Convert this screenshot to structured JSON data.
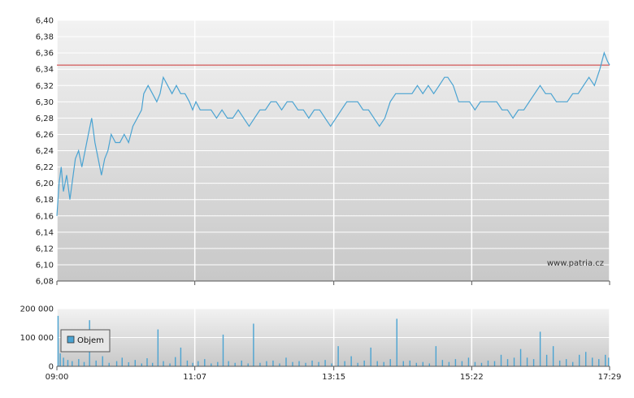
{
  "chart_data": [
    {
      "type": "line",
      "title": "",
      "xlabel": "",
      "ylabel": "",
      "ylim": [
        6.08,
        6.4
      ],
      "grid": true,
      "y_ticks": [
        "6,08",
        "6,10",
        "6,12",
        "6,14",
        "6,16",
        "6,18",
        "6,20",
        "6,22",
        "6,24",
        "6,26",
        "6,28",
        "6,30",
        "6,32",
        "6,34",
        "6,36",
        "6,38",
        "6,40"
      ],
      "x_ticks": [
        "09:00",
        "11:07",
        "13:15",
        "15:22",
        "17:29"
      ],
      "reference_line": {
        "value": 6.345,
        "color": "#cc3333"
      },
      "series": [
        {
          "color": "#4aa3d2",
          "points": [
            [
              "09:00",
              6.16
            ],
            [
              "09:02",
              6.2
            ],
            [
              "09:04",
              6.22
            ],
            [
              "09:06",
              6.19
            ],
            [
              "09:09",
              6.21
            ],
            [
              "09:12",
              6.18
            ],
            [
              "09:14",
              6.2
            ],
            [
              "09:17",
              6.23
            ],
            [
              "09:20",
              6.24
            ],
            [
              "09:23",
              6.22
            ],
            [
              "09:26",
              6.24
            ],
            [
              "09:29",
              6.26
            ],
            [
              "09:32",
              6.28
            ],
            [
              "09:35",
              6.25
            ],
            [
              "09:38",
              6.23
            ],
            [
              "09:41",
              6.21
            ],
            [
              "09:44",
              6.23
            ],
            [
              "09:47",
              6.24
            ],
            [
              "09:50",
              6.26
            ],
            [
              "09:54",
              6.25
            ],
            [
              "09:58",
              6.25
            ],
            [
              "10:02",
              6.26
            ],
            [
              "10:06",
              6.25
            ],
            [
              "10:10",
              6.27
            ],
            [
              "10:14",
              6.28
            ],
            [
              "10:18",
              6.29
            ],
            [
              "10:20",
              6.31
            ],
            [
              "10:24",
              6.32
            ],
            [
              "10:28",
              6.31
            ],
            [
              "10:32",
              6.3
            ],
            [
              "10:35",
              6.31
            ],
            [
              "10:38",
              6.33
            ],
            [
              "10:42",
              6.32
            ],
            [
              "10:46",
              6.31
            ],
            [
              "10:50",
              6.32
            ],
            [
              "10:54",
              6.31
            ],
            [
              "10:58",
              6.31
            ],
            [
              "11:02",
              6.3
            ],
            [
              "11:05",
              6.29
            ],
            [
              "11:08",
              6.3
            ],
            [
              "11:12",
              6.29
            ],
            [
              "11:17",
              6.29
            ],
            [
              "11:22",
              6.29
            ],
            [
              "11:27",
              6.28
            ],
            [
              "11:32",
              6.29
            ],
            [
              "11:37",
              6.28
            ],
            [
              "11:42",
              6.28
            ],
            [
              "11:47",
              6.29
            ],
            [
              "11:52",
              6.28
            ],
            [
              "11:57",
              6.27
            ],
            [
              "12:02",
              6.28
            ],
            [
              "12:07",
              6.29
            ],
            [
              "12:12",
              6.29
            ],
            [
              "12:17",
              6.3
            ],
            [
              "12:22",
              6.3
            ],
            [
              "12:27",
              6.29
            ],
            [
              "12:32",
              6.3
            ],
            [
              "12:37",
              6.3
            ],
            [
              "12:42",
              6.29
            ],
            [
              "12:47",
              6.29
            ],
            [
              "12:52",
              6.28
            ],
            [
              "12:57",
              6.29
            ],
            [
              "13:02",
              6.29
            ],
            [
              "13:07",
              6.28
            ],
            [
              "13:12",
              6.27
            ],
            [
              "13:17",
              6.28
            ],
            [
              "13:22",
              6.29
            ],
            [
              "13:27",
              6.3
            ],
            [
              "13:32",
              6.3
            ],
            [
              "13:37",
              6.3
            ],
            [
              "13:42",
              6.29
            ],
            [
              "13:47",
              6.29
            ],
            [
              "13:52",
              6.28
            ],
            [
              "13:57",
              6.27
            ],
            [
              "14:02",
              6.28
            ],
            [
              "14:07",
              6.3
            ],
            [
              "14:12",
              6.31
            ],
            [
              "14:17",
              6.31
            ],
            [
              "14:22",
              6.31
            ],
            [
              "14:27",
              6.31
            ],
            [
              "14:32",
              6.32
            ],
            [
              "14:37",
              6.31
            ],
            [
              "14:42",
              6.32
            ],
            [
              "14:47",
              6.31
            ],
            [
              "14:52",
              6.32
            ],
            [
              "14:57",
              6.33
            ],
            [
              "15:00",
              6.33
            ],
            [
              "15:05",
              6.32
            ],
            [
              "15:10",
              6.3
            ],
            [
              "15:15",
              6.3
            ],
            [
              "15:20",
              6.3
            ],
            [
              "15:25",
              6.29
            ],
            [
              "15:30",
              6.3
            ],
            [
              "15:35",
              6.3
            ],
            [
              "15:40",
              6.3
            ],
            [
              "15:45",
              6.3
            ],
            [
              "15:50",
              6.29
            ],
            [
              "15:55",
              6.29
            ],
            [
              "16:00",
              6.28
            ],
            [
              "16:05",
              6.29
            ],
            [
              "16:10",
              6.29
            ],
            [
              "16:15",
              6.3
            ],
            [
              "16:20",
              6.31
            ],
            [
              "16:25",
              6.32
            ],
            [
              "16:30",
              6.31
            ],
            [
              "16:35",
              6.31
            ],
            [
              "16:40",
              6.3
            ],
            [
              "16:45",
              6.3
            ],
            [
              "16:50",
              6.3
            ],
            [
              "16:55",
              6.31
            ],
            [
              "17:00",
              6.31
            ],
            [
              "17:05",
              6.32
            ],
            [
              "17:10",
              6.33
            ],
            [
              "17:15",
              6.32
            ],
            [
              "17:20",
              6.34
            ],
            [
              "17:24",
              6.36
            ],
            [
              "17:27",
              6.35
            ],
            [
              "17:29",
              6.345
            ]
          ]
        }
      ]
    },
    {
      "type": "bar",
      "title": "",
      "xlabel": "",
      "ylabel": "",
      "ylim": [
        0,
        200000
      ],
      "grid": true,
      "y_ticks": [
        "0",
        "100 000",
        "200 000"
      ],
      "x_ticks": [
        "09:00",
        "11:07",
        "13:15",
        "15:22",
        "17:29"
      ],
      "legend": {
        "position": "left",
        "label": "Objem"
      },
      "series": [
        {
          "name": "Objem",
          "color": "#4aa3d2",
          "points": [
            [
              "09:01",
              175000
            ],
            [
              "09:03",
              45000
            ],
            [
              "09:06",
              30000
            ],
            [
              "09:10",
              22000
            ],
            [
              "09:14",
              18000
            ],
            [
              "09:20",
              25000
            ],
            [
              "09:25",
              15000
            ],
            [
              "09:30",
              160000
            ],
            [
              "09:36",
              20000
            ],
            [
              "09:42",
              35000
            ],
            [
              "09:48",
              12000
            ],
            [
              "09:55",
              18000
            ],
            [
              "10:00",
              30000
            ],
            [
              "10:06",
              14000
            ],
            [
              "10:12",
              22000
            ],
            [
              "10:18",
              10000
            ],
            [
              "10:23",
              28000
            ],
            [
              "10:28",
              12000
            ],
            [
              "10:33",
              128000
            ],
            [
              "10:38",
              18000
            ],
            [
              "10:44",
              10000
            ],
            [
              "10:49",
              32000
            ],
            [
              "10:54",
              65000
            ],
            [
              "11:00",
              20000
            ],
            [
              "11:05",
              12000
            ],
            [
              "11:10",
              18000
            ],
            [
              "11:16",
              25000
            ],
            [
              "11:22",
              10000
            ],
            [
              "11:28",
              15000
            ],
            [
              "11:33",
              110000
            ],
            [
              "11:38",
              18000
            ],
            [
              "11:44",
              12000
            ],
            [
              "11:50",
              20000
            ],
            [
              "11:56",
              10000
            ],
            [
              "12:01",
              148000
            ],
            [
              "12:07",
              12000
            ],
            [
              "12:13",
              18000
            ],
            [
              "12:19",
              20000
            ],
            [
              "12:25",
              10000
            ],
            [
              "12:31",
              30000
            ],
            [
              "12:37",
              15000
            ],
            [
              "12:43",
              18000
            ],
            [
              "12:49",
              12000
            ],
            [
              "12:55",
              20000
            ],
            [
              "13:01",
              15000
            ],
            [
              "13:07",
              22000
            ],
            [
              "13:13",
              10000
            ],
            [
              "13:19",
              70000
            ],
            [
              "13:25",
              18000
            ],
            [
              "13:31",
              35000
            ],
            [
              "13:37",
              12000
            ],
            [
              "13:43",
              20000
            ],
            [
              "13:49",
              65000
            ],
            [
              "13:55",
              18000
            ],
            [
              "14:01",
              15000
            ],
            [
              "14:07",
              25000
            ],
            [
              "14:13",
              165000
            ],
            [
              "14:19",
              18000
            ],
            [
              "14:25",
              20000
            ],
            [
              "14:31",
              12000
            ],
            [
              "14:37",
              15000
            ],
            [
              "14:43",
              10000
            ],
            [
              "14:49",
              70000
            ],
            [
              "14:55",
              22000
            ],
            [
              "15:01",
              15000
            ],
            [
              "15:07",
              25000
            ],
            [
              "15:13",
              18000
            ],
            [
              "15:19",
              30000
            ],
            [
              "15:25",
              15000
            ],
            [
              "15:31",
              12000
            ],
            [
              "15:37",
              20000
            ],
            [
              "15:43",
              18000
            ],
            [
              "15:49",
              40000
            ],
            [
              "15:55",
              25000
            ],
            [
              "16:01",
              30000
            ],
            [
              "16:07",
              60000
            ],
            [
              "16:13",
              30000
            ],
            [
              "16:19",
              25000
            ],
            [
              "16:25",
              120000
            ],
            [
              "16:31",
              40000
            ],
            [
              "16:37",
              70000
            ],
            [
              "16:43",
              20000
            ],
            [
              "16:49",
              25000
            ],
            [
              "16:55",
              15000
            ],
            [
              "17:01",
              40000
            ],
            [
              "17:07",
              50000
            ],
            [
              "17:13",
              30000
            ],
            [
              "17:19",
              25000
            ],
            [
              "17:25",
              40000
            ],
            [
              "17:28",
              30000
            ]
          ]
        }
      ]
    }
  ],
  "watermark": "www.patria.cz"
}
